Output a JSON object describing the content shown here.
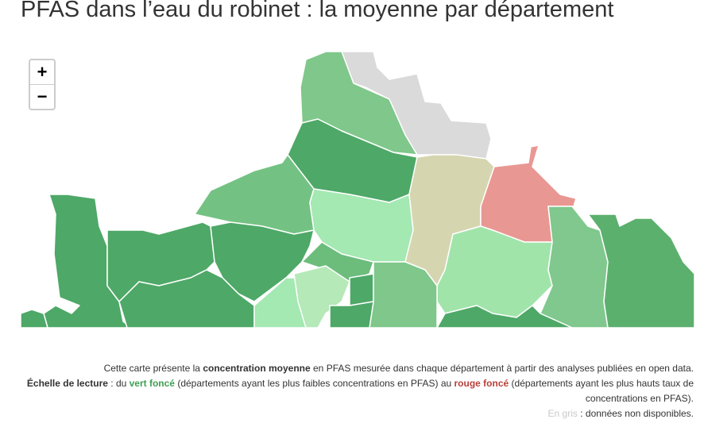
{
  "header": {
    "title": "PFAS dans l’eau du robinet : la moyenne par département"
  },
  "zoom_controls": {
    "zoom_in": "+",
    "zoom_out": "−"
  },
  "caption": {
    "intro": [
      "Cette carte présente la ",
      "concentration moyenne",
      " en PFAS mesurée dans chaque département à partir des analyses publiées en open data."
    ],
    "scale": [
      "Échelle de lecture",
      " : du ",
      "vert foncé",
      " (départements ayant les plus faibles concentrations en PFAS) au ",
      "rouge foncé",
      " (départements ayant les plus hauts taux de concentrations en PFAS)."
    ],
    "missing": [
      "En gris",
      " : données non disponibles."
    ]
  }
}
